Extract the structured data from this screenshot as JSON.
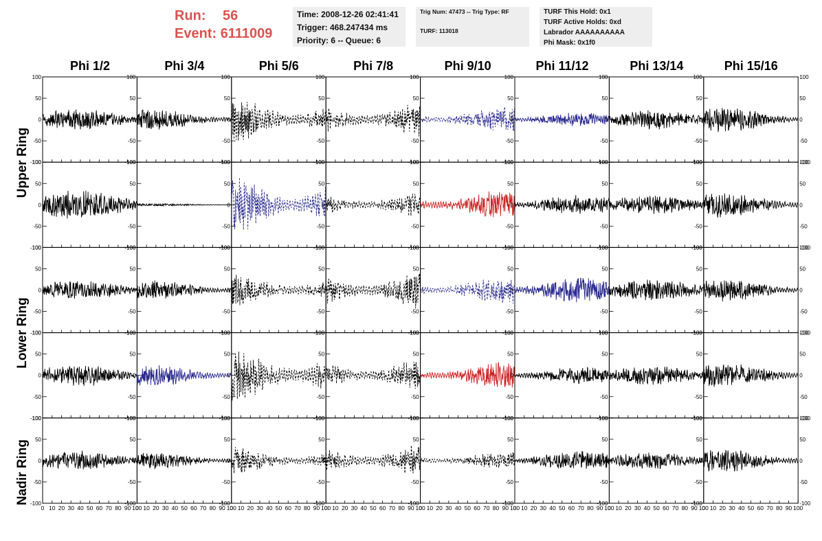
{
  "header": {
    "run_label": "Run:",
    "run_value": "56",
    "event_label": "Event:",
    "event_value": "6111009",
    "time": "Time: 2008-12-26 02:41:41",
    "trigger": "Trigger: 468.247434 ms",
    "priority": "Priority: 6 -- Queue: 6",
    "trig_num": "Trig Num: 47473 -- Trig Type: RF",
    "turf": "TURF: 113018",
    "turf_hold": "TURF This Hold: 0x1",
    "turf_active": "TURF Active Holds: 0xd",
    "labrador": "Labrador AAAAAAAAAA",
    "phi_mask": "Phi Mask: 0x1f0"
  },
  "columns": [
    "Phi 1/2",
    "Phi 3/4",
    "Phi 5/6",
    "Phi 7/8",
    "Phi 9/10",
    "Phi 11/12",
    "Phi 13/14",
    "Phi 15/16"
  ],
  "rings": [
    "Upper Ring",
    "Lower Ring",
    "Nadir Ring"
  ],
  "colors": {
    "black": "#000000",
    "blue": "#2a2a8f",
    "red": "#cc2222"
  },
  "chart_data": {
    "type": "line",
    "x_range": [
      0,
      100
    ],
    "y_range": [
      -100,
      100
    ],
    "x_ticks": [
      "0",
      "10",
      "20",
      "30",
      "40",
      "50",
      "60",
      "70",
      "80",
      "90",
      "100"
    ],
    "y_ticks": [
      "100",
      "50",
      "0",
      "-50",
      "-100"
    ],
    "rows": [
      {
        "ring": "Upper Ring",
        "panels": [
          {
            "amp": 15,
            "style": "solid",
            "color": "black"
          },
          {
            "amp": 16,
            "style": "solid",
            "color": "black"
          },
          {
            "amp": 35,
            "style": "dashed",
            "color": "black"
          },
          {
            "amp": 30,
            "style": "dashed",
            "color": "black"
          },
          {
            "amp": 18,
            "style": "dashed",
            "color": "blue"
          },
          {
            "amp": 10,
            "style": "solid",
            "color": "blue"
          },
          {
            "amp": 14,
            "style": "solid",
            "color": "black"
          },
          {
            "amp": 18,
            "style": "solid",
            "color": "black"
          }
        ]
      },
      {
        "ring": "Upper Ring",
        "panels": [
          {
            "amp": 22,
            "style": "solid",
            "color": "black"
          },
          {
            "amp": 2,
            "style": "solid",
            "color": "black"
          },
          {
            "amp": 48,
            "style": "dashed",
            "color": "blue"
          },
          {
            "amp": 22,
            "style": "dashed",
            "color": "black"
          },
          {
            "amp": 22,
            "style": "solid",
            "color": "red"
          },
          {
            "amp": 14,
            "style": "solid",
            "color": "black"
          },
          {
            "amp": 14,
            "style": "solid",
            "color": "black"
          },
          {
            "amp": 18,
            "style": "solid",
            "color": "black"
          }
        ]
      },
      {
        "ring": "Lower Ring",
        "panels": [
          {
            "amp": 14,
            "style": "solid",
            "color": "black"
          },
          {
            "amp": 14,
            "style": "solid",
            "color": "black"
          },
          {
            "amp": 26,
            "style": "dashed",
            "color": "black"
          },
          {
            "amp": 32,
            "style": "dashed",
            "color": "black"
          },
          {
            "amp": 20,
            "style": "dashed",
            "color": "blue"
          },
          {
            "amp": 18,
            "style": "solid",
            "color": "blue"
          },
          {
            "amp": 16,
            "style": "solid",
            "color": "black"
          },
          {
            "amp": 16,
            "style": "solid",
            "color": "black"
          }
        ]
      },
      {
        "ring": "Lower Ring",
        "panels": [
          {
            "amp": 16,
            "style": "solid",
            "color": "black"
          },
          {
            "amp": 16,
            "style": "solid",
            "color": "blue"
          },
          {
            "amp": 42,
            "style": "dashed",
            "color": "black"
          },
          {
            "amp": 28,
            "style": "dashed",
            "color": "black"
          },
          {
            "amp": 20,
            "style": "solid",
            "color": "red"
          },
          {
            "amp": 12,
            "style": "solid",
            "color": "black"
          },
          {
            "amp": 14,
            "style": "solid",
            "color": "black"
          },
          {
            "amp": 18,
            "style": "solid",
            "color": "black"
          }
        ]
      },
      {
        "ring": "Nadir Ring",
        "panels": [
          {
            "amp": 14,
            "style": "solid",
            "color": "black"
          },
          {
            "amp": 12,
            "style": "solid",
            "color": "black"
          },
          {
            "amp": 22,
            "style": "dashed",
            "color": "black"
          },
          {
            "amp": 28,
            "style": "dashed",
            "color": "black"
          },
          {
            "amp": 12,
            "style": "dashed",
            "color": "black"
          },
          {
            "amp": 14,
            "style": "solid",
            "color": "black"
          },
          {
            "amp": 12,
            "style": "solid",
            "color": "black"
          },
          {
            "amp": 16,
            "style": "solid",
            "color": "black"
          }
        ]
      }
    ]
  }
}
